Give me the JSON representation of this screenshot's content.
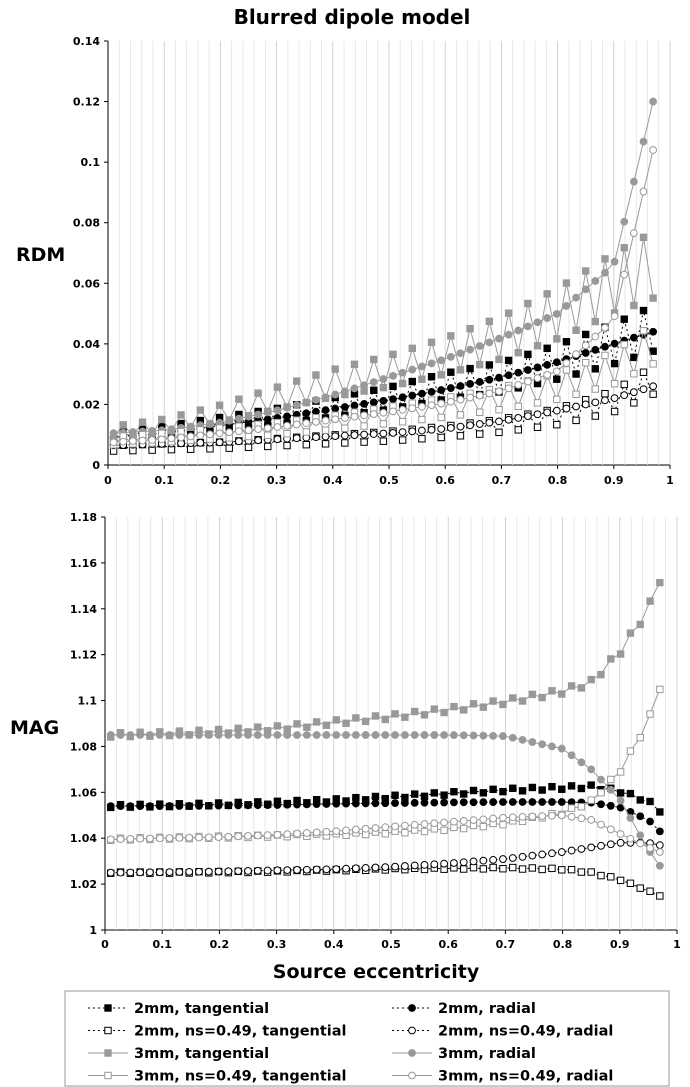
{
  "chart_data": [
    {
      "type": "line",
      "title": "Blurred dipole model",
      "ylabel": "RDM",
      "xlabel": "",
      "xlim": [
        0,
        1
      ],
      "ylim": [
        0,
        0.14
      ],
      "x_ticks": [
        "0",
        "0.1",
        "0.2",
        "0.3",
        "0.4",
        "0.5",
        "0.6",
        "0.7",
        "0.8",
        "0.9",
        "1"
      ],
      "y_ticks": [
        "0",
        "0.02",
        "0.04",
        "0.06",
        "0.08",
        "0.1",
        "0.12",
        "0.14"
      ],
      "grid": "vertical",
      "series": [
        {
          "name": "2mm, tangential",
          "x": [
            0.01,
            0.1,
            0.2,
            0.3,
            0.4,
            0.5,
            0.6,
            0.7,
            0.8,
            0.9,
            0.97
          ],
          "y": [
            0.0095,
            0.011,
            0.0135,
            0.016,
            0.019,
            0.022,
            0.026,
            0.029,
            0.034,
            0.04,
            0.045
          ]
        },
        {
          "name": "2mm, radial",
          "x": [
            0.01,
            0.1,
            0.2,
            0.3,
            0.4,
            0.5,
            0.6,
            0.7,
            0.8,
            0.9,
            0.97
          ],
          "y": [
            0.009,
            0.0105,
            0.013,
            0.0155,
            0.0185,
            0.0215,
            0.025,
            0.029,
            0.034,
            0.04,
            0.044
          ]
        },
        {
          "name": "2mm, ns=0.49, tangential",
          "x": [
            0.01,
            0.1,
            0.2,
            0.3,
            0.4,
            0.5,
            0.6,
            0.7,
            0.8,
            0.9,
            0.97
          ],
          "y": [
            0.0055,
            0.006,
            0.0065,
            0.0075,
            0.0085,
            0.0095,
            0.011,
            0.013,
            0.016,
            0.021,
            0.028
          ]
        },
        {
          "name": "2mm, ns=0.49, radial",
          "x": [
            0.01,
            0.1,
            0.2,
            0.3,
            0.4,
            0.5,
            0.6,
            0.7,
            0.8,
            0.9,
            0.97
          ],
          "y": [
            0.0065,
            0.007,
            0.0075,
            0.0085,
            0.0095,
            0.0105,
            0.012,
            0.0145,
            0.018,
            0.022,
            0.026
          ]
        },
        {
          "name": "3mm, tangential",
          "x": [
            0.01,
            0.1,
            0.2,
            0.3,
            0.4,
            0.5,
            0.6,
            0.7,
            0.8,
            0.9,
            0.97
          ],
          "y": [
            0.011,
            0.013,
            0.017,
            0.022,
            0.027,
            0.031,
            0.036,
            0.042,
            0.05,
            0.06,
            0.066
          ]
        },
        {
          "name": "3mm, radial",
          "x": [
            0.01,
            0.1,
            0.2,
            0.3,
            0.4,
            0.5,
            0.6,
            0.7,
            0.8,
            0.9,
            0.97
          ],
          "y": [
            0.0105,
            0.0115,
            0.014,
            0.018,
            0.023,
            0.029,
            0.035,
            0.042,
            0.05,
            0.066,
            0.12
          ]
        },
        {
          "name": "3mm, ns=0.49, tangential",
          "x": [
            0.01,
            0.1,
            0.2,
            0.3,
            0.4,
            0.5,
            0.6,
            0.7,
            0.8,
            0.9,
            0.97
          ],
          "y": [
            0.008,
            0.009,
            0.0105,
            0.012,
            0.014,
            0.0165,
            0.019,
            0.022,
            0.026,
            0.032,
            0.04
          ]
        },
        {
          "name": "3mm, ns=0.49, radial",
          "x": [
            0.01,
            0.1,
            0.2,
            0.3,
            0.4,
            0.5,
            0.6,
            0.7,
            0.8,
            0.9,
            0.97
          ],
          "y": [
            0.0075,
            0.0085,
            0.0105,
            0.0125,
            0.015,
            0.0175,
            0.0205,
            0.0245,
            0.031,
            0.048,
            0.104
          ]
        }
      ]
    },
    {
      "type": "line",
      "title": "",
      "ylabel": "MAG",
      "xlabel": "Source eccentricity",
      "xlim": [
        0,
        1
      ],
      "ylim": [
        1,
        1.18
      ],
      "x_ticks": [
        "0",
        "0.1",
        "0.2",
        "0.3",
        "0.4",
        "0.5",
        "0.6",
        "0.7",
        "0.8",
        "0.9",
        "1"
      ],
      "y_ticks": [
        "1",
        "1.02",
        "1.04",
        "1.06",
        "1.08",
        "1.1",
        "1.12",
        "1.14",
        "1.16",
        "1.18"
      ],
      "grid": "vertical",
      "series": [
        {
          "name": "2mm, tangential",
          "x": [
            0.01,
            0.1,
            0.2,
            0.3,
            0.4,
            0.5,
            0.6,
            0.7,
            0.8,
            0.85,
            0.9,
            0.95,
            0.97
          ],
          "y": [
            1.054,
            1.0543,
            1.0548,
            1.0555,
            1.0565,
            1.058,
            1.0595,
            1.061,
            1.062,
            1.0625,
            1.0605,
            1.056,
            1.052
          ]
        },
        {
          "name": "2mm, radial",
          "x": [
            0.01,
            0.1,
            0.2,
            0.3,
            0.4,
            0.5,
            0.6,
            0.7,
            0.8,
            0.85,
            0.9,
            0.95,
            0.97
          ],
          "y": [
            1.054,
            1.054,
            1.0542,
            1.0545,
            1.055,
            1.0553,
            1.0556,
            1.0558,
            1.0558,
            1.0555,
            1.0535,
            1.048,
            1.043
          ]
        },
        {
          "name": "2mm, ns=0.49, tangential",
          "x": [
            0.01,
            0.1,
            0.2,
            0.3,
            0.4,
            0.5,
            0.6,
            0.7,
            0.8,
            0.85,
            0.9,
            0.95,
            0.97
          ],
          "y": [
            1.025,
            1.025,
            1.0252,
            1.0255,
            1.026,
            1.0265,
            1.0268,
            1.027,
            1.0265,
            1.025,
            1.022,
            1.017,
            1.015
          ]
        },
        {
          "name": "2mm, ns=0.49, radial",
          "x": [
            0.01,
            0.1,
            0.2,
            0.3,
            0.4,
            0.5,
            0.6,
            0.7,
            0.8,
            0.85,
            0.9,
            0.95,
            0.97
          ],
          "y": [
            1.025,
            1.0252,
            1.0255,
            1.026,
            1.0265,
            1.0275,
            1.029,
            1.031,
            1.034,
            1.036,
            1.038,
            1.038,
            1.037
          ]
        },
        {
          "name": "3mm, tangential",
          "x": [
            0.01,
            0.1,
            0.2,
            0.3,
            0.4,
            0.5,
            0.6,
            0.7,
            0.8,
            0.85,
            0.9,
            0.95,
            0.97
          ],
          "y": [
            1.085,
            1.0855,
            1.0865,
            1.088,
            1.0905,
            1.093,
            1.096,
            1.0995,
            1.104,
            1.108,
            1.121,
            1.14,
            1.153
          ]
        },
        {
          "name": "3mm, radial",
          "x": [
            0.01,
            0.1,
            0.2,
            0.3,
            0.4,
            0.5,
            0.6,
            0.7,
            0.8,
            0.85,
            0.9,
            0.95,
            0.97
          ],
          "y": [
            1.085,
            1.085,
            1.085,
            1.085,
            1.085,
            1.085,
            1.085,
            1.0845,
            1.079,
            1.07,
            1.057,
            1.035,
            1.028
          ]
        },
        {
          "name": "3mm, ns=0.49, tangential",
          "x": [
            0.01,
            0.1,
            0.2,
            0.3,
            0.4,
            0.5,
            0.6,
            0.7,
            0.8,
            0.85,
            0.9,
            0.95,
            0.97
          ],
          "y": [
            1.0395,
            1.04,
            1.0405,
            1.041,
            1.0415,
            1.0425,
            1.044,
            1.0465,
            1.051,
            1.056,
            1.069,
            1.091,
            1.106
          ]
        },
        {
          "name": "3mm, ns=0.49, radial",
          "x": [
            0.01,
            0.1,
            0.2,
            0.3,
            0.4,
            0.5,
            0.6,
            0.7,
            0.8,
            0.85,
            0.9,
            0.95,
            0.97
          ],
          "y": [
            1.0395,
            1.04,
            1.0405,
            1.0415,
            1.043,
            1.045,
            1.047,
            1.049,
            1.05,
            1.048,
            1.042,
            1.036,
            1.034
          ]
        }
      ]
    }
  ],
  "series_styles": [
    {
      "name": "2mm, tangential",
      "color": "#000000",
      "marker": "square",
      "fill": "#000000",
      "dash": "2,3",
      "zigzag": true
    },
    {
      "name": "2mm, radial",
      "color": "#000000",
      "marker": "circle",
      "fill": "#000000",
      "dash": "2,3",
      "zigzag": false
    },
    {
      "name": "2mm, ns=0.49, tangential",
      "color": "#000000",
      "marker": "square",
      "fill": "#ffffff",
      "dash": "2,3",
      "zigzag": true
    },
    {
      "name": "2mm, ns=0.49, radial",
      "color": "#000000",
      "marker": "circle",
      "fill": "#ffffff",
      "dash": "2,3",
      "zigzag": false
    },
    {
      "name": "3mm, tangential",
      "color": "#999999",
      "marker": "square",
      "fill": "#999999",
      "dash": "",
      "zigzag": true
    },
    {
      "name": "3mm, radial",
      "color": "#999999",
      "marker": "circle",
      "fill": "#999999",
      "dash": "",
      "zigzag": false
    },
    {
      "name": "3mm, ns=0.49, tangential",
      "color": "#999999",
      "marker": "square",
      "fill": "#ffffff",
      "dash": "",
      "zigzag": true
    },
    {
      "name": "3mm, ns=0.49, radial",
      "color": "#999999",
      "marker": "circle",
      "fill": "#ffffff",
      "dash": "",
      "zigzag": false
    }
  ],
  "legend": {
    "placement": "bottom",
    "items": [
      "2mm, tangential",
      "2mm, radial",
      "2mm, ns=0.49, tangential",
      "2mm, ns=0.49, radial",
      "3mm, tangential",
      "3mm, radial",
      "3mm, ns=0.49, tangential",
      "3mm, ns=0.49, radial"
    ]
  }
}
